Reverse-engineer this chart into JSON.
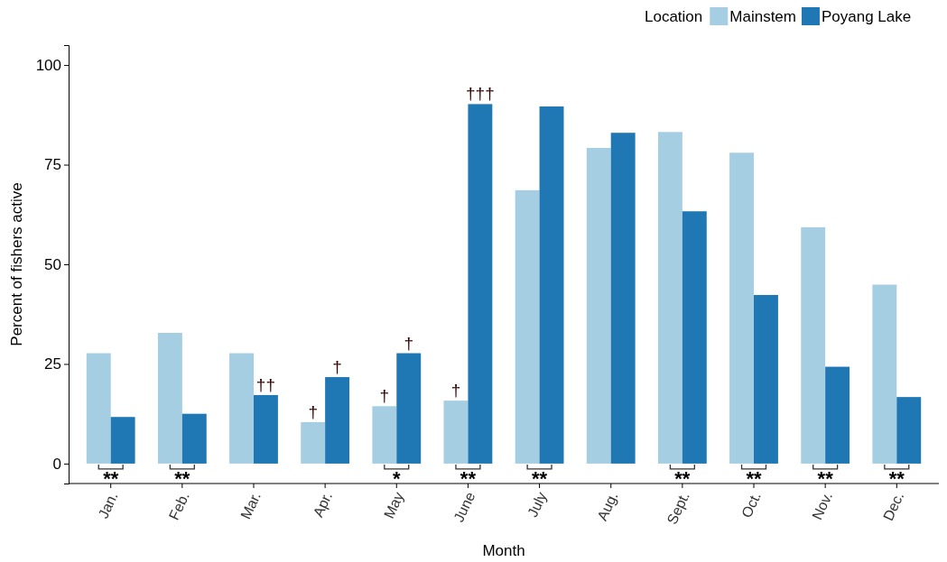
{
  "chart_data": {
    "type": "bar",
    "xlabel": "Month",
    "ylabel": "Percent of fishers active",
    "legend_title": "Location",
    "legend": "top right",
    "categories": [
      "Jan.",
      "Feb.",
      "Mar.",
      "Apr.",
      "May",
      "June",
      "July",
      "Aug.",
      "Sept.",
      "Oct.",
      "Nov.",
      "Dec."
    ],
    "series": [
      {
        "name": "Mainstem",
        "color": "#a6cee3",
        "values": [
          27.7,
          32.8,
          27.7,
          10.4,
          14.4,
          15.8,
          68.6,
          79.2,
          83.2,
          78.0,
          59.3,
          44.9
        ]
      },
      {
        "name": "Poyang Lake",
        "color": "#1f78b4",
        "values": [
          11.7,
          12.5,
          17.2,
          21.7,
          27.7,
          90.2,
          89.6,
          83.0,
          63.3,
          42.3,
          24.3,
          16.7
        ]
      }
    ],
    "ylim": [
      -5,
      105
    ],
    "yticks": [
      0,
      25,
      50,
      75,
      100
    ],
    "grid": false,
    "annotations": [
      {
        "text": "**",
        "x": "Jan.",
        "y": 0
      },
      {
        "text": "**",
        "x": "Feb.",
        "y": 0
      },
      {
        "text": "††",
        "x": "Mar.",
        "y": 17.2
      },
      {
        "text": "†",
        "x": "Apr.",
        "y": 10.4
      },
      {
        "text": "†",
        "x": "Apr.",
        "y": 21.7
      },
      {
        "text": "†",
        "x": "May",
        "y": 14.4
      },
      {
        "text": "†",
        "x": "May",
        "y": 27.7
      },
      {
        "text": "*",
        "x": "May",
        "y": 0
      },
      {
        "text": "†",
        "x": "June",
        "y": 15.8
      },
      {
        "text": "†††",
        "x": "June",
        "y": 90.2
      },
      {
        "text": "**",
        "x": "June",
        "y": 0
      },
      {
        "text": "**",
        "x": "July",
        "y": 0
      },
      {
        "text": "**",
        "x": "Sept.",
        "y": 0
      },
      {
        "text": "**",
        "x": "Oct.",
        "y": 0
      },
      {
        "text": "**",
        "x": "Nov.",
        "y": 0
      },
      {
        "text": "**",
        "x": "Dec.",
        "y": 0
      }
    ]
  }
}
